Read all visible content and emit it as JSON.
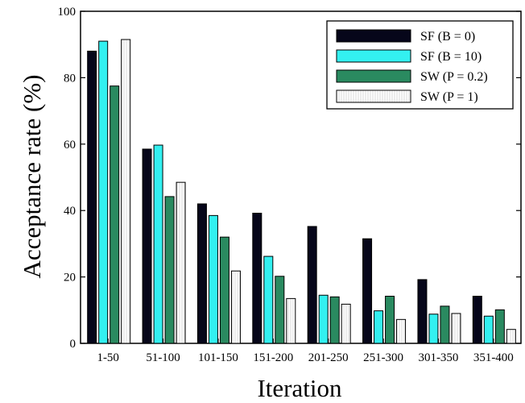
{
  "chart_data": {
    "type": "bar",
    "xlabel": "Iteration",
    "ylabel": "Acceptance rate (%)",
    "ylim": [
      0,
      100
    ],
    "yticks": [
      0,
      20,
      40,
      60,
      80,
      100
    ],
    "grid": false,
    "legend_position": "top-right",
    "categories": [
      "1-50",
      "51-100",
      "101-150",
      "151-200",
      "201-250",
      "251-300",
      "301-350",
      "351-400"
    ],
    "series": [
      {
        "name": "SF (B = 0)",
        "color": "#06061a",
        "values": [
          88,
          58.5,
          42,
          39.2,
          35.2,
          31.5,
          19.2,
          14.2
        ]
      },
      {
        "name": "SF (B = 10)",
        "color": "#33f0f0",
        "values": [
          91,
          59.7,
          38.5,
          26.2,
          14.5,
          9.8,
          8.8,
          8.2
        ]
      },
      {
        "name": "SW (P = 0.2)",
        "color": "#2a8a60",
        "values": [
          77.5,
          44.2,
          32,
          20.2,
          14,
          14.2,
          11.2,
          10.1
        ]
      },
      {
        "name": "SW (P = 1)",
        "color": "#ffffff",
        "values": [
          91.5,
          48.5,
          21.8,
          13.5,
          11.8,
          7.2,
          9,
          4.2
        ]
      }
    ]
  }
}
